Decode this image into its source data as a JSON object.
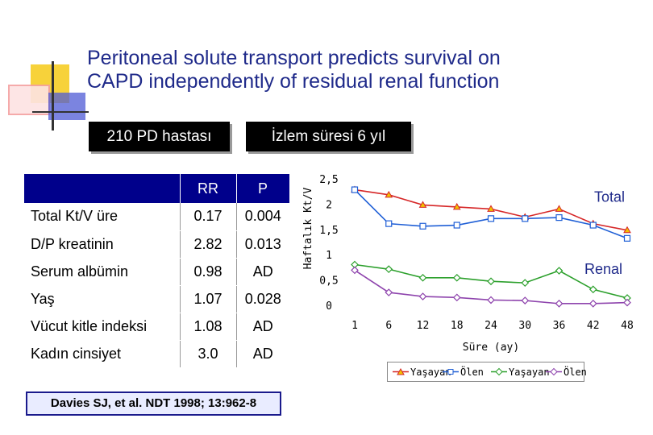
{
  "slide": {
    "title_line1": "Peritoneal solute transport predicts survival on",
    "title_line2": "CAPD independently of residual renal function",
    "banner_patients": "210 PD hastası",
    "banner_followup": "İzlem süresi 6 yıl",
    "citation": "Davies SJ, et al. NDT 1998; 13:962-8"
  },
  "table": {
    "headers": [
      "",
      "RR",
      "P"
    ],
    "rows": [
      {
        "name": "Total Kt/V üre",
        "rr": "0.17",
        "p": "0.004"
      },
      {
        "name": "D/P kreatinin",
        "rr": "2.82",
        "p": "0.013"
      },
      {
        "name": "Serum albümin",
        "rr": "0.98",
        "p": "AD"
      },
      {
        "name": "Yaş",
        "rr": "1.07",
        "p": "0.028"
      },
      {
        "name": "Vücut kitle indeksi",
        "rr": "1.08",
        "p": "AD"
      },
      {
        "name": "Kadın cinsiyet",
        "rr": "3.0",
        "p": "AD"
      }
    ],
    "colors": {
      "header_bg": "#00008b",
      "header_text": "#ffffff"
    }
  },
  "chart_data": {
    "type": "line",
    "title": "",
    "xlabel": "Süre (ay)",
    "ylabel": "Haftalık Kt/V",
    "x": [
      1,
      6,
      12,
      18,
      24,
      30,
      36,
      42,
      48
    ],
    "x_tick_labels": [
      "1",
      "6",
      "12",
      "18",
      "24",
      "30",
      "36",
      "42",
      "48"
    ],
    "y_tick_labels": [
      "0",
      "0,5",
      "1",
      "1,5",
      "2",
      "2,5"
    ],
    "ylim": [
      0,
      2.5
    ],
    "annotations": [
      "Total",
      "Renal"
    ],
    "series": [
      {
        "name": "Yaşayan",
        "group": "Total",
        "color": "#d62728",
        "marker": "triangle",
        "values": [
          2.3,
          2.2,
          2.0,
          1.96,
          1.92,
          1.76,
          1.92,
          1.63,
          1.5
        ]
      },
      {
        "name": "Ölen",
        "group": "Total",
        "color": "#1f5fd6",
        "marker": "square",
        "values": [
          2.3,
          1.63,
          1.58,
          1.6,
          1.73,
          1.73,
          1.75,
          1.6,
          1.34
        ]
      },
      {
        "name": "Yaşayan",
        "group": "Renal",
        "color": "#2ca02c",
        "marker": "diamond",
        "values": [
          0.82,
          0.73,
          0.56,
          0.56,
          0.49,
          0.46,
          0.7,
          0.33,
          0.16
        ]
      },
      {
        "name": "Ölen",
        "group": "Renal",
        "color": "#8e44ad",
        "marker": "diamond",
        "values": [
          0.71,
          0.27,
          0.19,
          0.17,
          0.12,
          0.11,
          0.05,
          0.05,
          0.07
        ]
      }
    ]
  }
}
